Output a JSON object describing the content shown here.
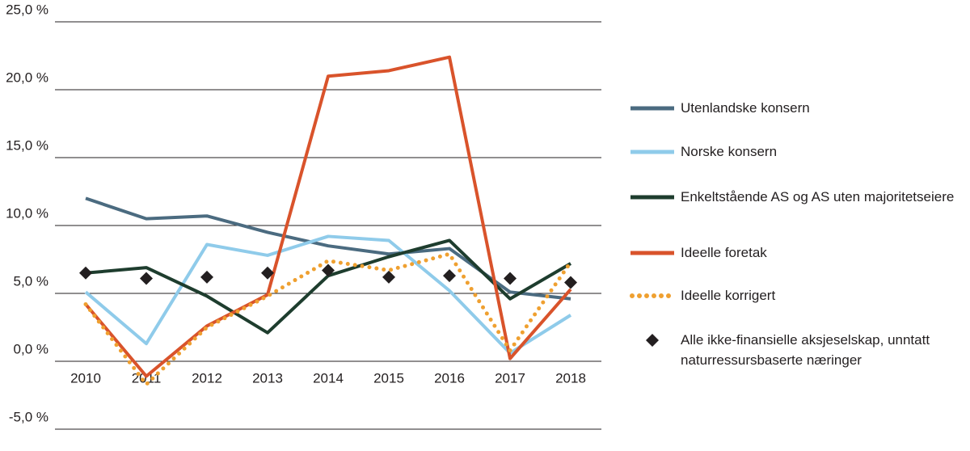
{
  "chart_data": {
    "type": "line",
    "categories": [
      "2010",
      "2011",
      "2012",
      "2013",
      "2014",
      "2015",
      "2016",
      "2017",
      "2018"
    ],
    "series": [
      {
        "name": "Utenlandske konsern",
        "color": "#4b6b80",
        "style": "solid",
        "values": [
          12.0,
          10.5,
          10.7,
          9.5,
          8.5,
          7.9,
          8.3,
          5.1,
          4.6
        ]
      },
      {
        "name": "Norske konsern",
        "color": "#8fcbea",
        "style": "solid",
        "values": [
          5.1,
          1.3,
          8.6,
          7.8,
          9.2,
          8.9,
          5.2,
          0.6,
          3.4
        ]
      },
      {
        "name": "Enkeltstående AS og AS uten majoritetseiere",
        "color": "#1e3d2e",
        "style": "solid",
        "values": [
          6.5,
          6.9,
          4.8,
          2.1,
          6.3,
          7.7,
          8.9,
          4.6,
          7.2
        ]
      },
      {
        "name": "Ideelle foretak",
        "color": "#d9532b",
        "style": "solid",
        "values": [
          4.2,
          -1.1,
          2.6,
          4.9,
          21.0,
          21.4,
          22.4,
          0.2,
          5.3
        ]
      },
      {
        "name": "Ideelle korrigert",
        "color": "#efa030",
        "style": "dotted",
        "values": [
          4.2,
          -1.7,
          2.5,
          4.8,
          7.4,
          6.7,
          7.9,
          0.8,
          7.3
        ]
      },
      {
        "name": "Alle ikke-finansielle aksjeselskap, unntatt naturressursbaserte næringer",
        "color": "#231f20",
        "style": "markers",
        "values": [
          6.5,
          6.1,
          6.2,
          6.5,
          6.7,
          6.2,
          6.3,
          6.1,
          5.8
        ]
      }
    ],
    "ylim": [
      -5,
      25
    ],
    "yticks": [
      {
        "value": -5,
        "label": "-5,0 %"
      },
      {
        "value": 0,
        "label": "0,0 %"
      },
      {
        "value": 5,
        "label": "5,0 %"
      },
      {
        "value": 10,
        "label": "10,0 %"
      },
      {
        "value": 15,
        "label": "15,0 %"
      },
      {
        "value": 20,
        "label": "20,0 %"
      },
      {
        "value": 25,
        "label": "25,0 %"
      }
    ],
    "grid": true,
    "legend": "right"
  }
}
